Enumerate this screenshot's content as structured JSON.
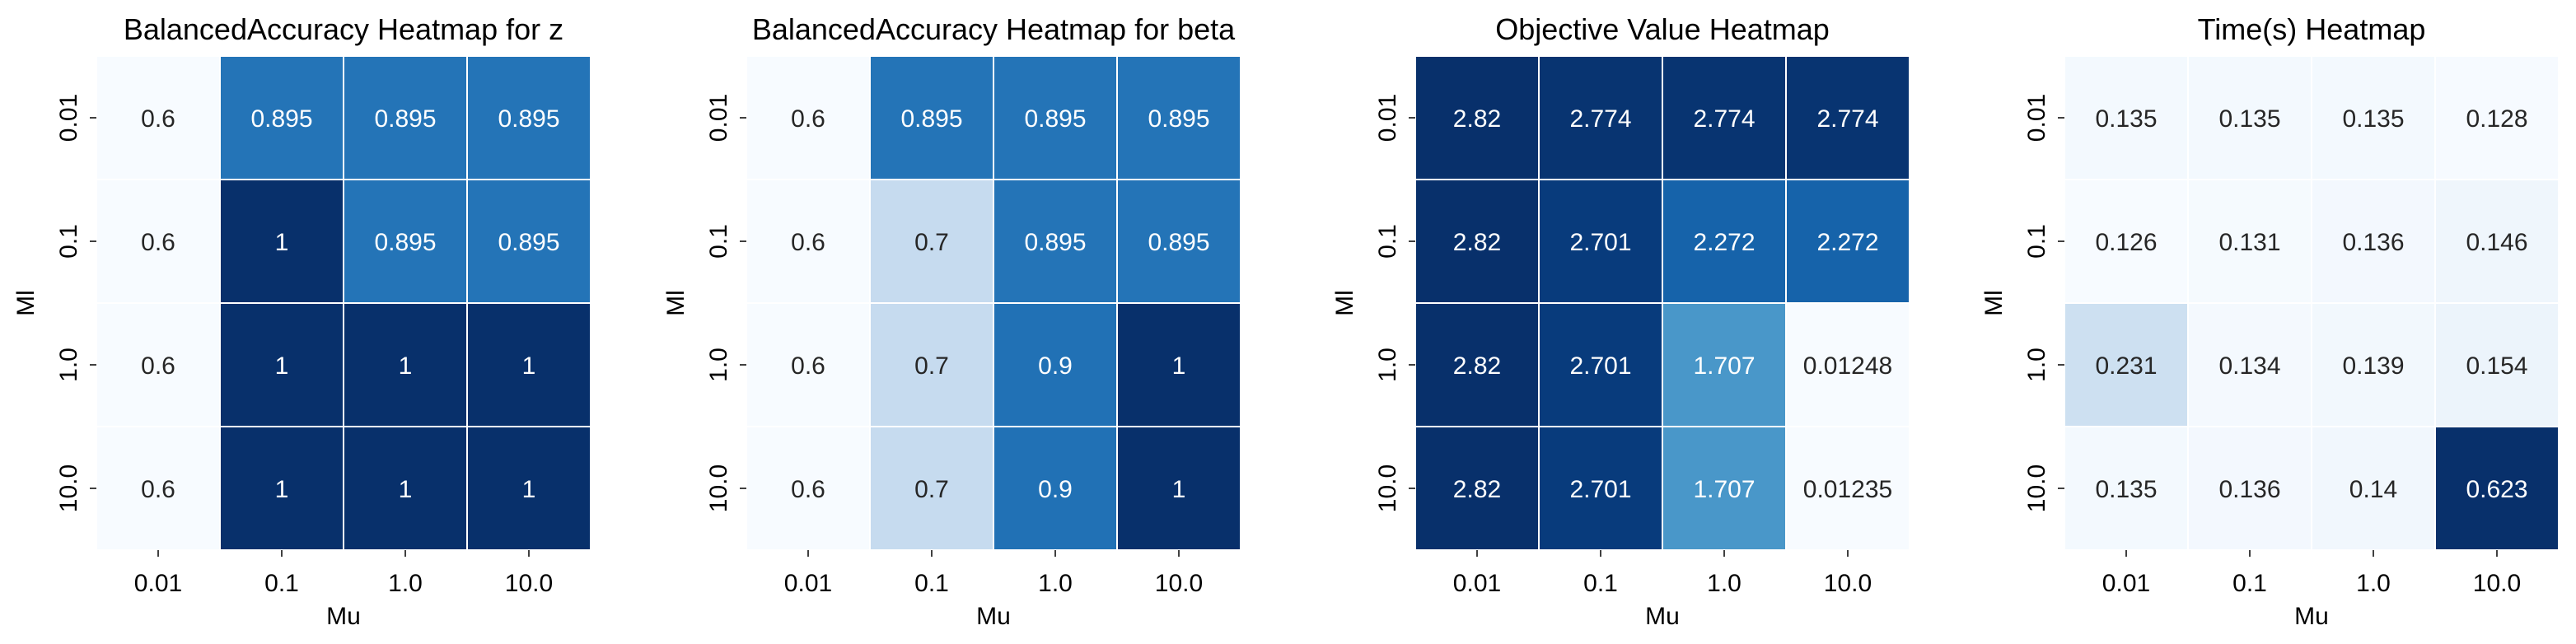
{
  "chart_data": [
    {
      "type": "heatmap",
      "title": "BalancedAccuracy Heatmap for z",
      "xlabel": "Mu",
      "ylabel": "Ml",
      "x_categories": [
        "0.01",
        "0.1",
        "1.0",
        "10.0"
      ],
      "y_categories": [
        "0.01",
        "0.1",
        "1.0",
        "10.0"
      ],
      "cells": [
        [
          "0.6",
          "0.895",
          "0.895",
          "0.895"
        ],
        [
          "0.6",
          "1",
          "0.895",
          "0.895"
        ],
        [
          "0.6",
          "1",
          "1",
          "1"
        ],
        [
          "0.6",
          "1",
          "1",
          "1"
        ]
      ],
      "values": [
        [
          0.6,
          0.895,
          0.895,
          0.895
        ],
        [
          0.6,
          1,
          0.895,
          0.895
        ],
        [
          0.6,
          1,
          1,
          1
        ],
        [
          0.6,
          1,
          1,
          1
        ]
      ],
      "colormap": "Blues",
      "colorbar": false
    },
    {
      "type": "heatmap",
      "title": "BalancedAccuracy Heatmap for beta",
      "xlabel": "Mu",
      "ylabel": "Ml",
      "x_categories": [
        "0.01",
        "0.1",
        "1.0",
        "10.0"
      ],
      "y_categories": [
        "0.01",
        "0.1",
        "1.0",
        "10.0"
      ],
      "cells": [
        [
          "0.6",
          "0.895",
          "0.895",
          "0.895"
        ],
        [
          "0.6",
          "0.7",
          "0.895",
          "0.895"
        ],
        [
          "0.6",
          "0.7",
          "0.9",
          "1"
        ],
        [
          "0.6",
          "0.7",
          "0.9",
          "1"
        ]
      ],
      "values": [
        [
          0.6,
          0.895,
          0.895,
          0.895
        ],
        [
          0.6,
          0.7,
          0.895,
          0.895
        ],
        [
          0.6,
          0.7,
          0.9,
          1
        ],
        [
          0.6,
          0.7,
          0.9,
          1
        ]
      ],
      "colormap": "Blues",
      "colorbar": false
    },
    {
      "type": "heatmap",
      "title": "Objective Value Heatmap",
      "xlabel": "Mu",
      "ylabel": "Ml",
      "x_categories": [
        "0.01",
        "0.1",
        "1.0",
        "10.0"
      ],
      "y_categories": [
        "0.01",
        "0.1",
        "1.0",
        "10.0"
      ],
      "cells": [
        [
          "2.82",
          "2.774",
          "2.774",
          "2.774"
        ],
        [
          "2.82",
          "2.701",
          "2.272",
          "2.272"
        ],
        [
          "2.82",
          "2.701",
          "1.707",
          "0.01248"
        ],
        [
          "2.82",
          "2.701",
          "1.707",
          "0.01235"
        ]
      ],
      "values": [
        [
          2.82,
          2.774,
          2.774,
          2.774
        ],
        [
          2.82,
          2.701,
          2.272,
          2.272
        ],
        [
          2.82,
          2.701,
          1.707,
          0.01248
        ],
        [
          2.82,
          2.701,
          1.707,
          0.01235
        ]
      ],
      "colormap": "Blues",
      "colorbar": false
    },
    {
      "type": "heatmap",
      "title": "Time(s) Heatmap",
      "xlabel": "Mu",
      "ylabel": "Ml",
      "x_categories": [
        "0.01",
        "0.1",
        "1.0",
        "10.0"
      ],
      "y_categories": [
        "0.01",
        "0.1",
        "1.0",
        "10.0"
      ],
      "cells": [
        [
          "0.135",
          "0.135",
          "0.135",
          "0.128"
        ],
        [
          "0.126",
          "0.131",
          "0.136",
          "0.146"
        ],
        [
          "0.231",
          "0.134",
          "0.139",
          "0.154"
        ],
        [
          "0.135",
          "0.136",
          "0.14",
          "0.623"
        ]
      ],
      "values": [
        [
          0.135,
          0.135,
          0.135,
          0.128
        ],
        [
          0.126,
          0.131,
          0.136,
          0.146
        ],
        [
          0.231,
          0.134,
          0.139,
          0.154
        ],
        [
          0.135,
          0.136,
          0.14,
          0.623
        ]
      ],
      "colormap": "Blues",
      "colorbar": false
    }
  ]
}
